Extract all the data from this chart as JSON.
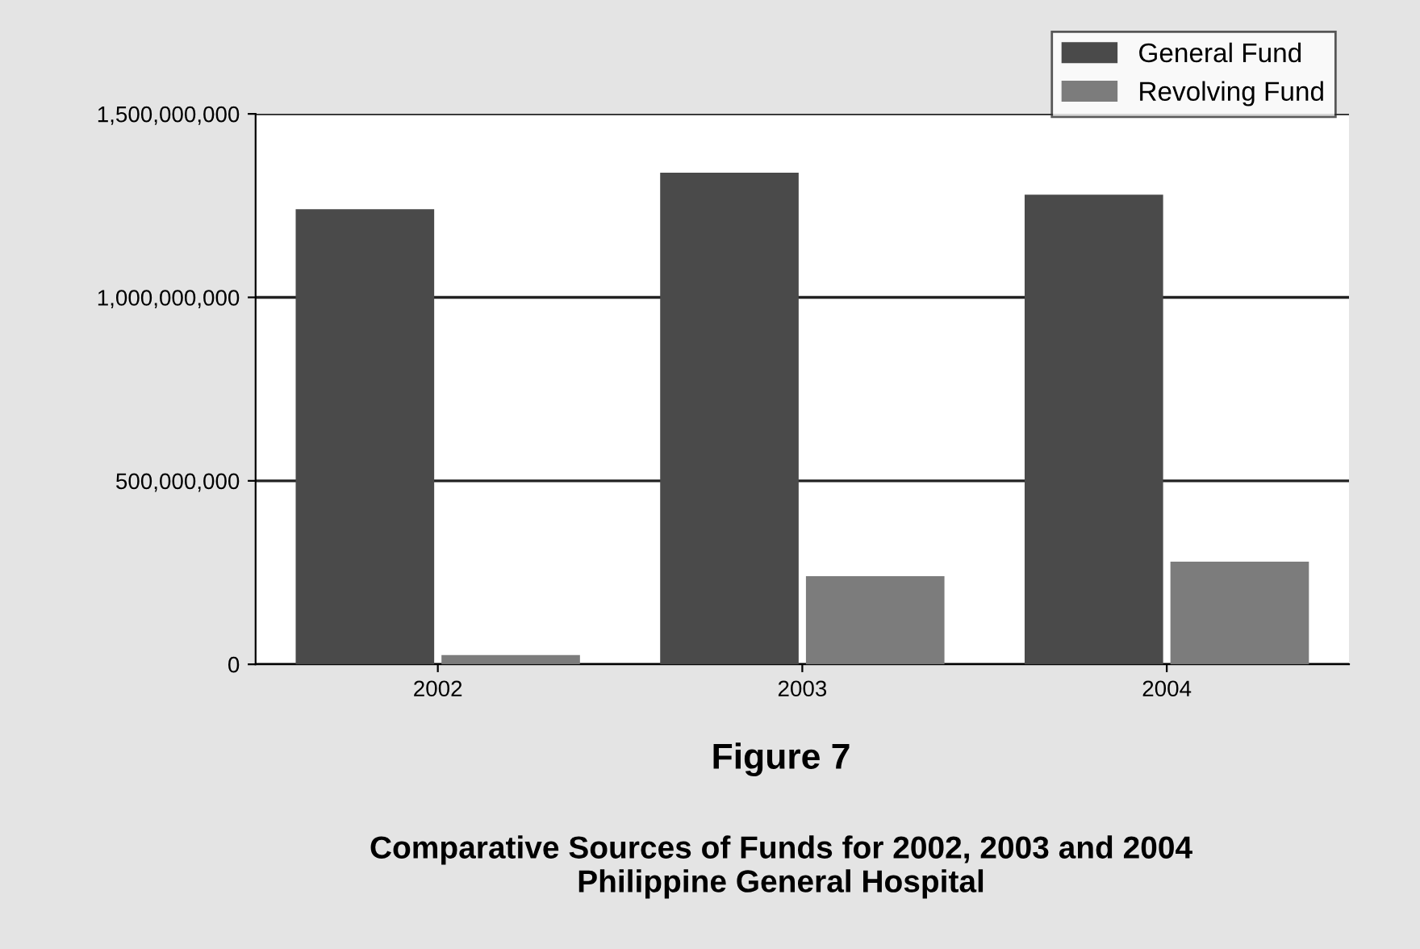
{
  "chart_data": {
    "type": "bar",
    "title": "Figure 7",
    "subtitle": "Comparative Sources of Funds for 2002, 2003 and 2004\nPhilippine General Hospital",
    "categories": [
      "2002",
      "2003",
      "2004"
    ],
    "series": [
      {
        "name": "General Fund",
        "color": "#4a4a4a",
        "values": [
          1240000000,
          1340000000,
          1280000000
        ]
      },
      {
        "name": "Revolving Fund",
        "color": "#7c7c7c",
        "values": [
          25000000,
          240000000,
          280000000
        ]
      }
    ],
    "ylim": [
      0,
      1500000000
    ],
    "yticks": [
      {
        "value": 0,
        "label": "0"
      },
      {
        "value": 500000000,
        "label": "500,000,000"
      },
      {
        "value": 1000000000,
        "label": "1,000,000,000"
      },
      {
        "value": 1500000000,
        "label": "1,500,000,000"
      }
    ],
    "grid": "y",
    "legend": "top right"
  }
}
